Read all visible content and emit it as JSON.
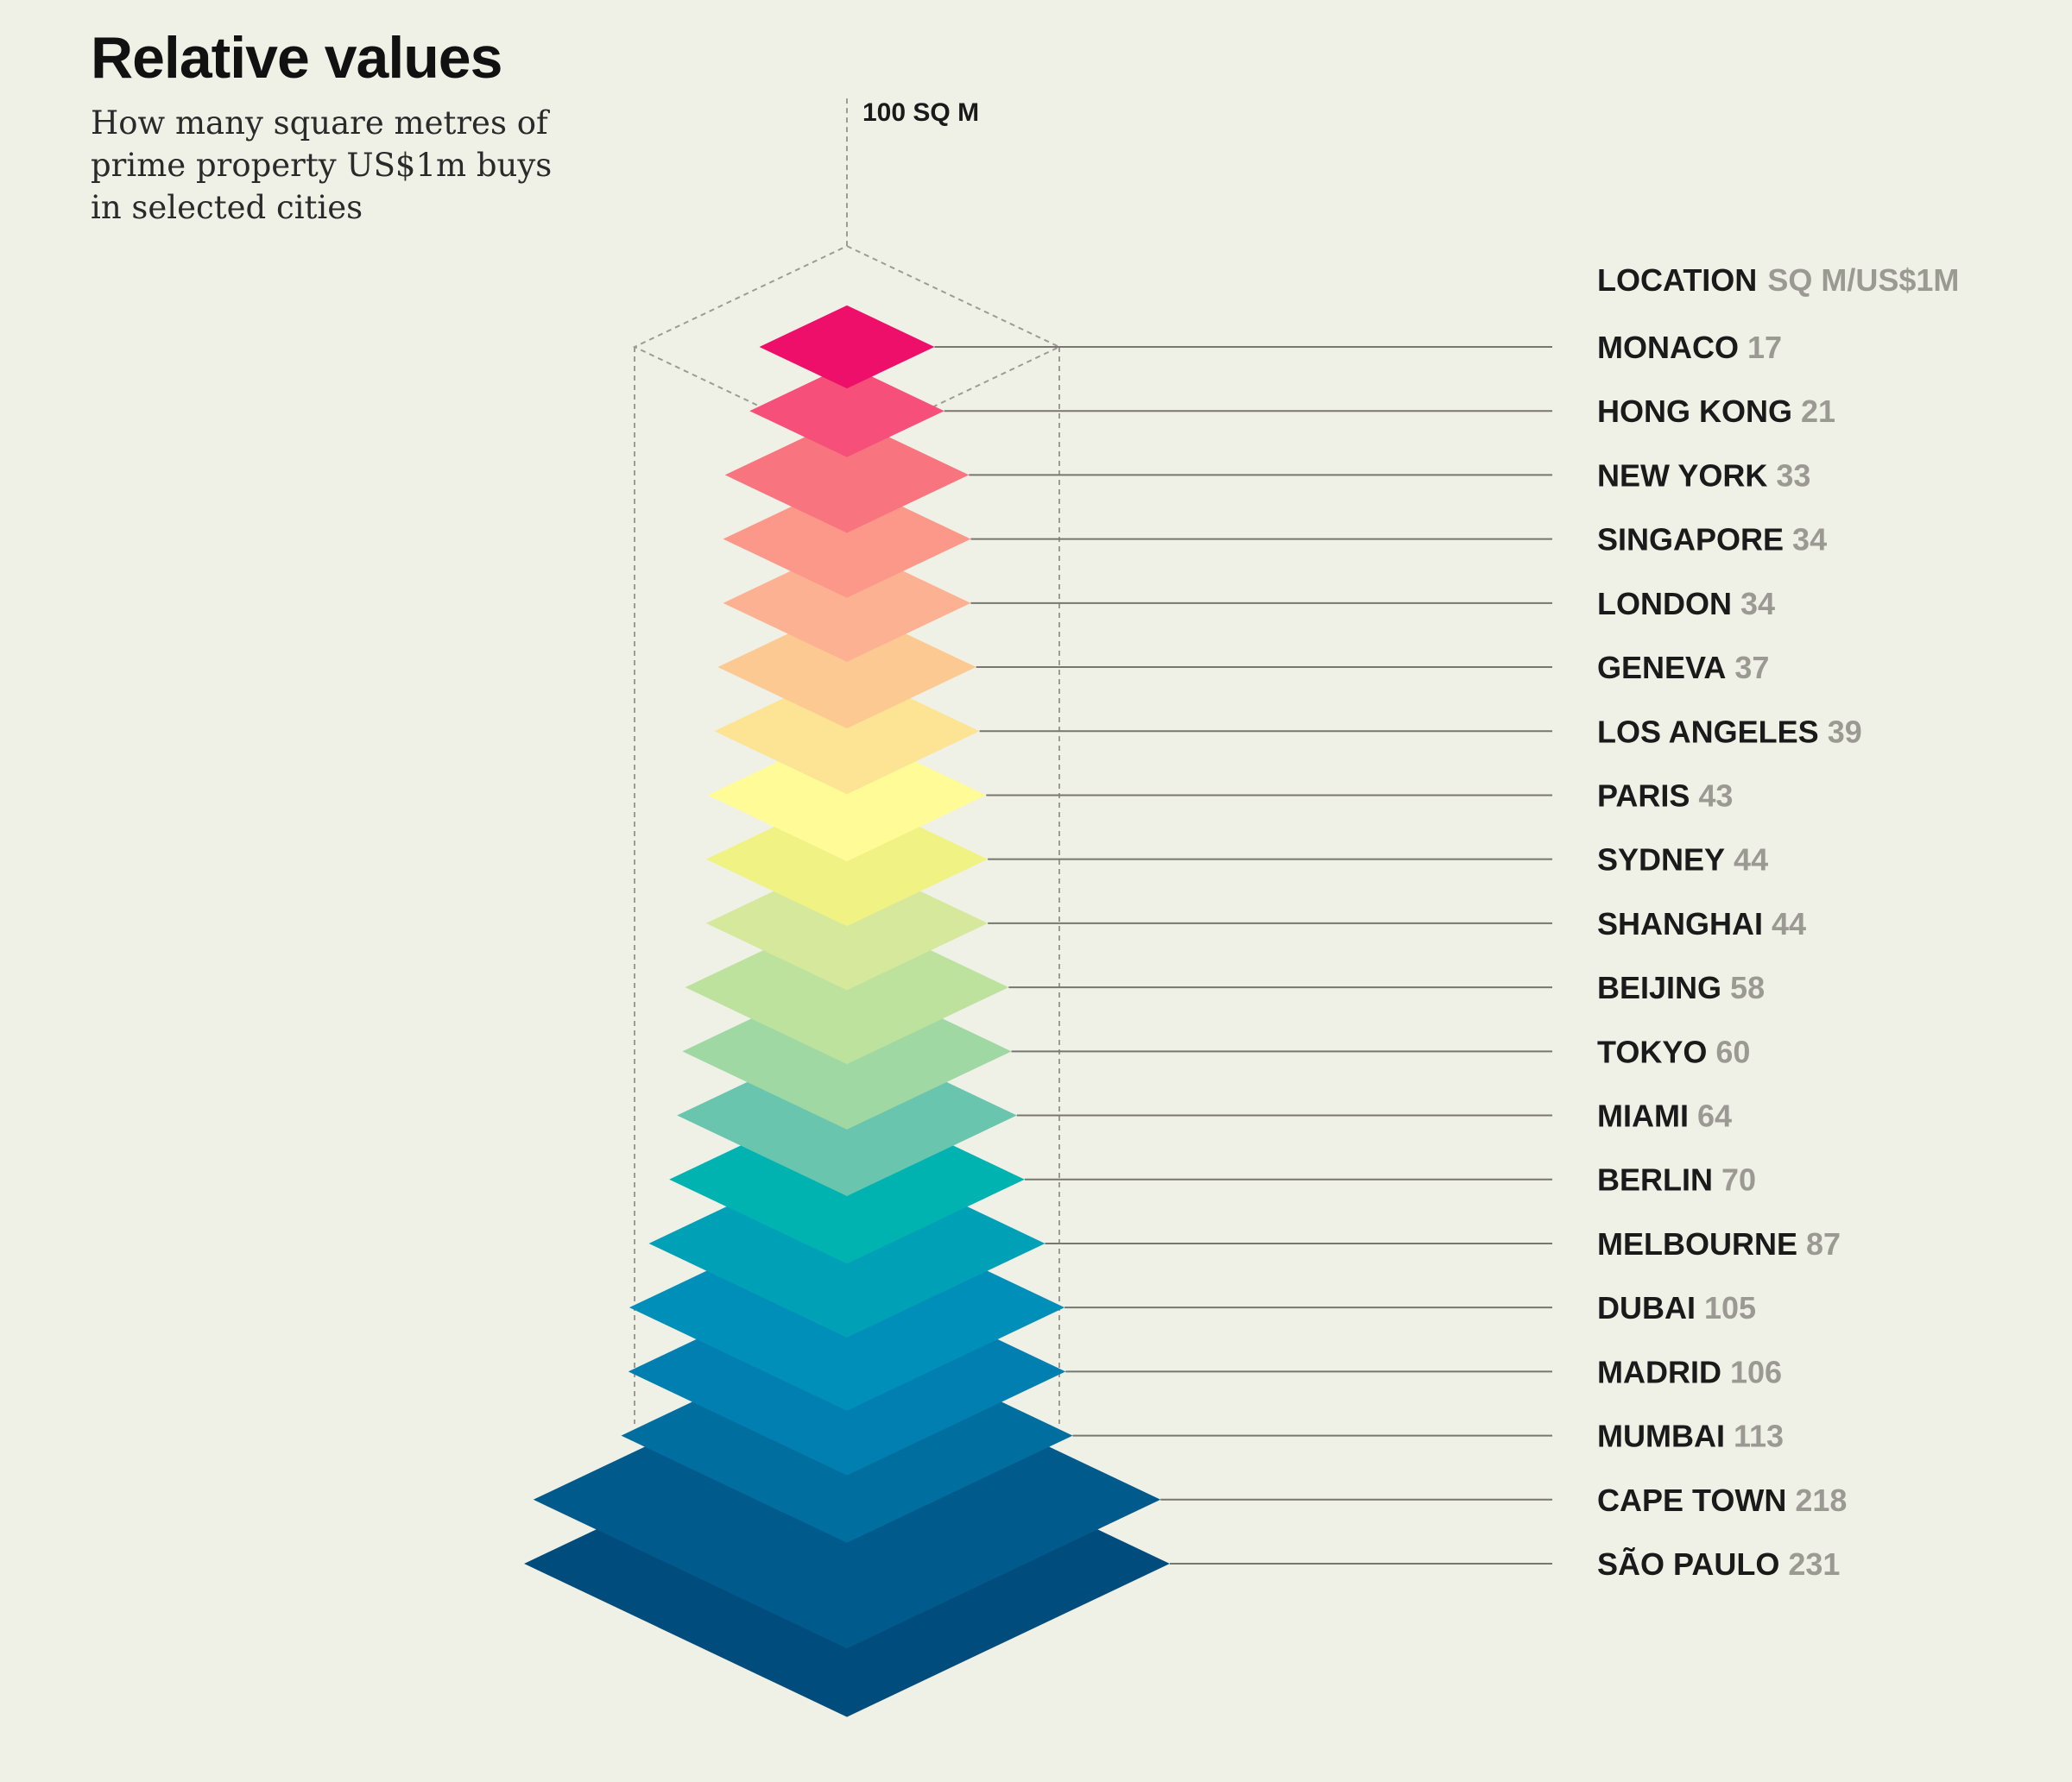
{
  "title": "Relative values",
  "subtitle": "How many square metres of prime property US$1m buys in selected cities",
  "chart_data": {
    "type": "bar",
    "title": "Relative values",
    "subtitle": "How many square metres of prime property US$1m buys in selected cities",
    "reference": {
      "label": "100 SQ M",
      "value": 100
    },
    "header": {
      "category": "LOCATION",
      "unit": "SQ M/US$1M"
    },
    "categories": [
      "MONACO",
      "HONG KONG",
      "NEW YORK",
      "SINGAPORE",
      "LONDON",
      "GENEVA",
      "LOS ANGELES",
      "PARIS",
      "SYDNEY",
      "SHANGHAI",
      "BEIJING",
      "TOKYO",
      "MIAMI",
      "BERLIN",
      "MELBOURNE",
      "DUBAI",
      "MADRID",
      "MUMBAI",
      "CAPE TOWN",
      "SÃO PAULO"
    ],
    "values": [
      17,
      21,
      33,
      34,
      34,
      37,
      39,
      43,
      44,
      44,
      58,
      60,
      64,
      70,
      87,
      105,
      106,
      113,
      218,
      231
    ],
    "colors": [
      "#ee0f6a",
      "#f54f7a",
      "#f87580",
      "#fb988a",
      "#fdb193",
      "#fdc992",
      "#fde394",
      "#fffb96",
      "#f0f284",
      "#d5e89c",
      "#bde29e",
      "#9fd8a2",
      "#69c5ad",
      "#00b3b0",
      "#00a0b6",
      "#008fb8",
      "#007fb0",
      "#006fa0",
      "#005a8c",
      "#004c7c"
    ]
  }
}
